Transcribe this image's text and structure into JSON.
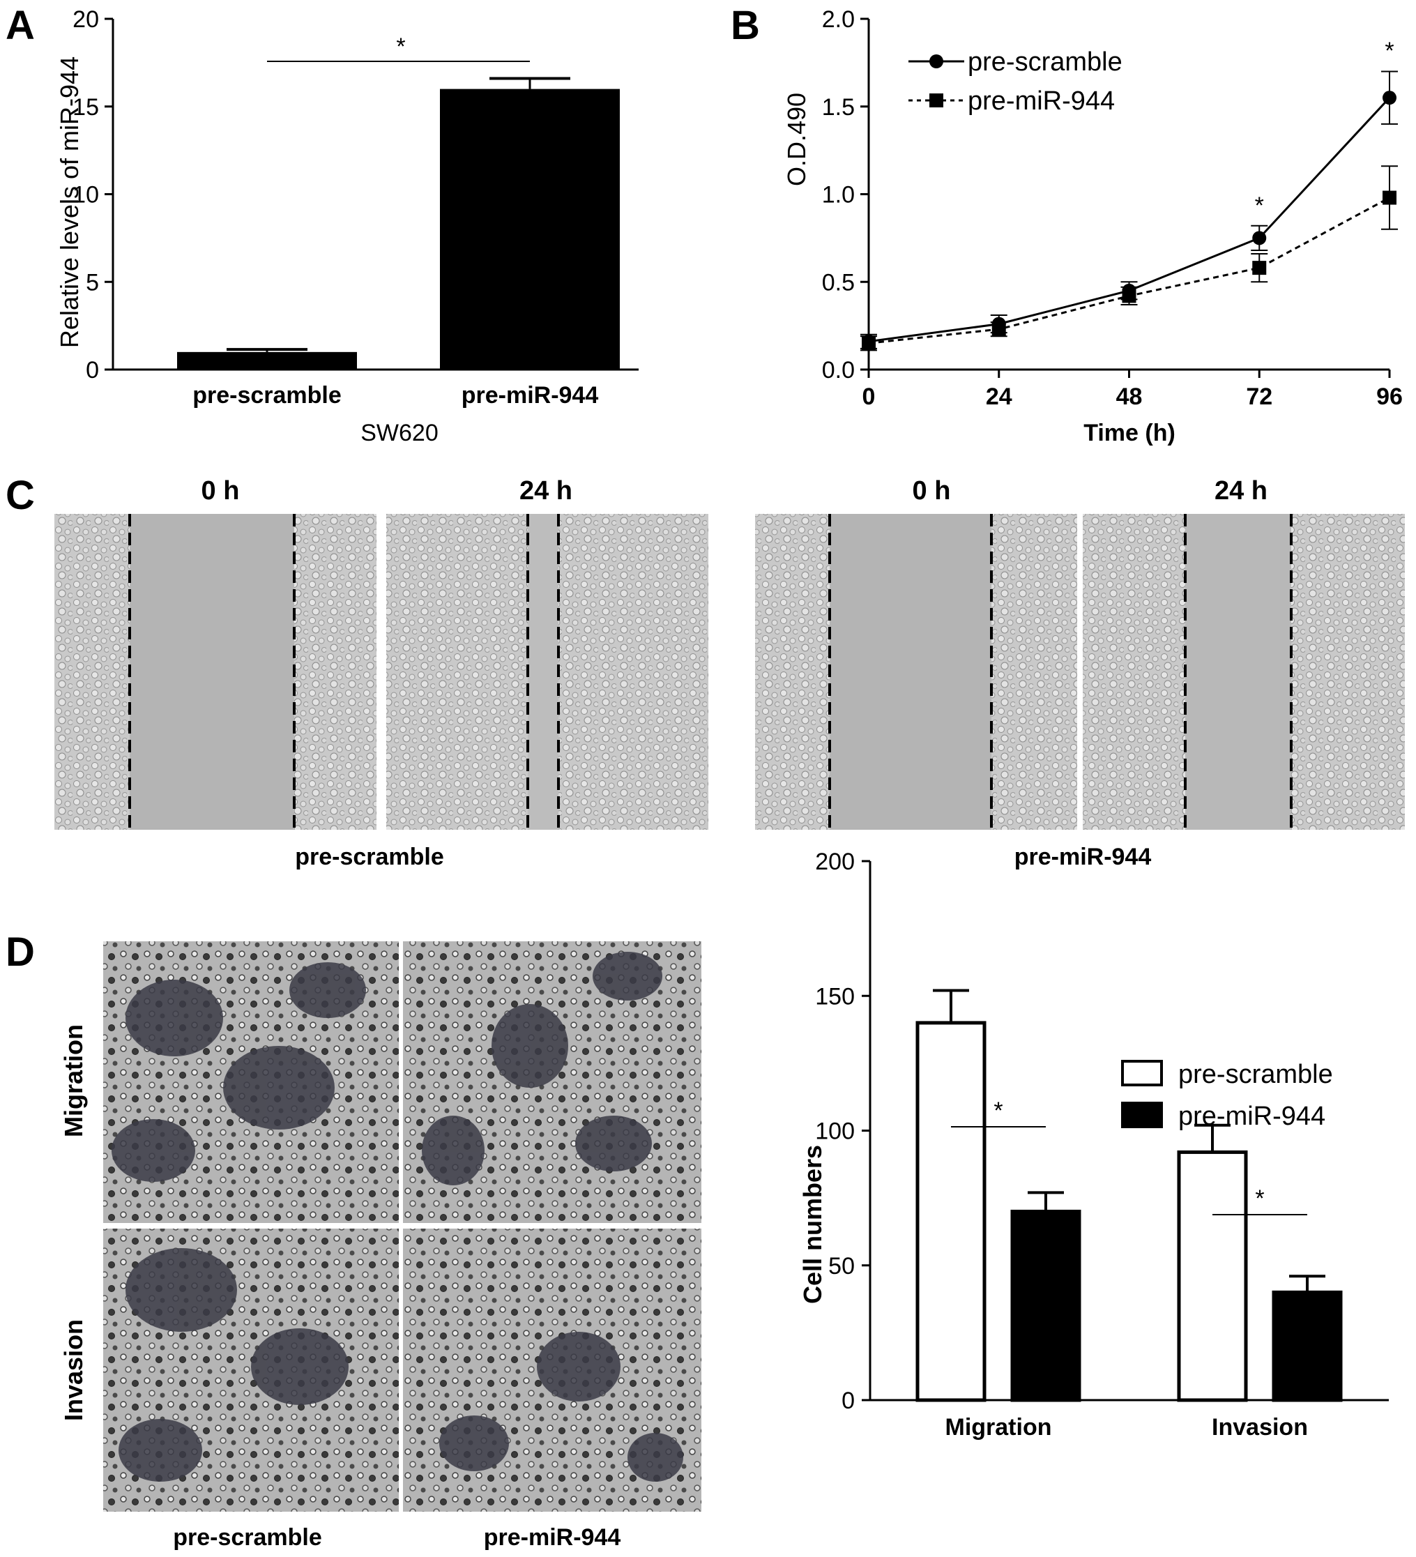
{
  "panel_labels": {
    "a": "A",
    "b": "B",
    "c": "C",
    "d": "D"
  },
  "chart_data": [
    {
      "panel": "A",
      "type": "bar",
      "categories": [
        "pre-scramble",
        "pre-miR-944"
      ],
      "values": [
        1,
        16
      ],
      "errors": [
        0.15,
        0.6
      ],
      "xlabel": "SW620",
      "ylabel": "Relative levels of miR-944",
      "ylim": [
        0,
        20
      ],
      "yticks": [
        "0",
        "5",
        "10",
        "15",
        "20"
      ],
      "significance": "*",
      "colors": [
        "#000000",
        "#000000"
      ]
    },
    {
      "panel": "B",
      "type": "line",
      "x": [
        0,
        24,
        48,
        72,
        96
      ],
      "xticks": [
        "0",
        "24",
        "48",
        "72",
        "96"
      ],
      "xlabel": "Time (h)",
      "ylabel": "O.D.490",
      "ylim": [
        0,
        2.0
      ],
      "yticks": [
        "0.0",
        "0.5",
        "1.0",
        "1.5",
        "2.0"
      ],
      "series": [
        {
          "name": "pre-scramble",
          "values": [
            0.16,
            0.26,
            0.45,
            0.75,
            1.55
          ],
          "errors": [
            0.04,
            0.05,
            0.05,
            0.07,
            0.15
          ],
          "marker": "circle",
          "style": "solid"
        },
        {
          "name": "pre-miR-944",
          "values": [
            0.15,
            0.23,
            0.42,
            0.58,
            0.98
          ],
          "errors": [
            0.04,
            0.04,
            0.05,
            0.08,
            0.18
          ],
          "marker": "square",
          "style": "dotted"
        }
      ],
      "significance": [
        "*",
        "*"
      ],
      "legend": "top-left"
    },
    {
      "panel": "D",
      "type": "bar",
      "categories": [
        "Migration",
        "Invasion"
      ],
      "ylabel": "Cell numbers",
      "ylim": [
        0,
        200
      ],
      "yticks": [
        "0",
        "50",
        "100",
        "150",
        "200"
      ],
      "series": [
        {
          "name": "pre-scramble",
          "values": [
            140,
            92
          ],
          "errors": [
            12,
            10
          ],
          "fill": "#ffffff"
        },
        {
          "name": "pre-miR-944",
          "values": [
            70,
            40
          ],
          "errors": [
            7,
            6
          ],
          "fill": "#000000"
        }
      ],
      "significance": [
        "*",
        "*"
      ],
      "legend": "top-right"
    }
  ],
  "panel_c": {
    "time_labels": [
      "0 h",
      "24 h",
      "0 h",
      "24 h"
    ],
    "group_labels": [
      "pre-scramble",
      "pre-miR-944"
    ]
  },
  "panel_d_images": {
    "row_labels": [
      "Migration",
      "Invasion"
    ],
    "column_labels": [
      "pre-scramble",
      "pre-miR-944"
    ]
  }
}
